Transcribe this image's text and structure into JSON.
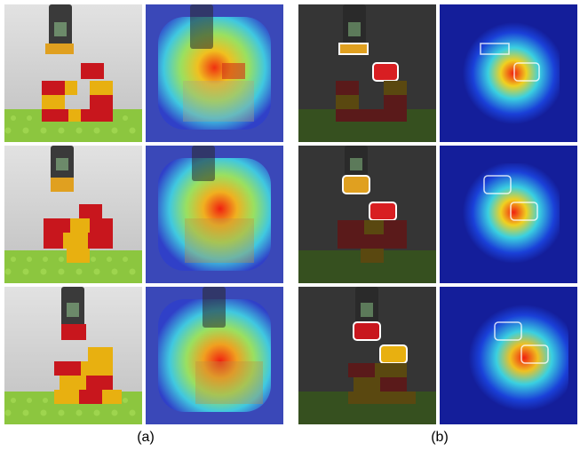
{
  "figure": {
    "captions": {
      "a": "(a)",
      "b": "(b)"
    },
    "panels": [
      {
        "group": "a",
        "row": 1,
        "kind": "photo"
      },
      {
        "group": "a",
        "row": 1,
        "kind": "heatmap-overlay"
      },
      {
        "group": "b",
        "row": 1,
        "kind": "masked-photo"
      },
      {
        "group": "b",
        "row": 1,
        "kind": "heatmap-dark"
      },
      {
        "group": "a",
        "row": 2,
        "kind": "photo"
      },
      {
        "group": "a",
        "row": 2,
        "kind": "heatmap-overlay"
      },
      {
        "group": "b",
        "row": 2,
        "kind": "masked-photo"
      },
      {
        "group": "b",
        "row": 2,
        "kind": "heatmap-dark"
      },
      {
        "group": "a",
        "row": 3,
        "kind": "photo"
      },
      {
        "group": "a",
        "row": 3,
        "kind": "heatmap-overlay"
      },
      {
        "group": "b",
        "row": 3,
        "kind": "masked-photo"
      },
      {
        "group": "b",
        "row": 3,
        "kind": "heatmap-dark"
      }
    ],
    "colors": {
      "brick_red": "#c8161d",
      "brick_yellow": "#e8b010",
      "baseplate_green": "#8cc63f",
      "backdrop": "#cfcfcf",
      "heat_low": "#1a2fd0",
      "heat_mid": "#3ad0e0",
      "heat_high": "#f02010"
    }
  }
}
